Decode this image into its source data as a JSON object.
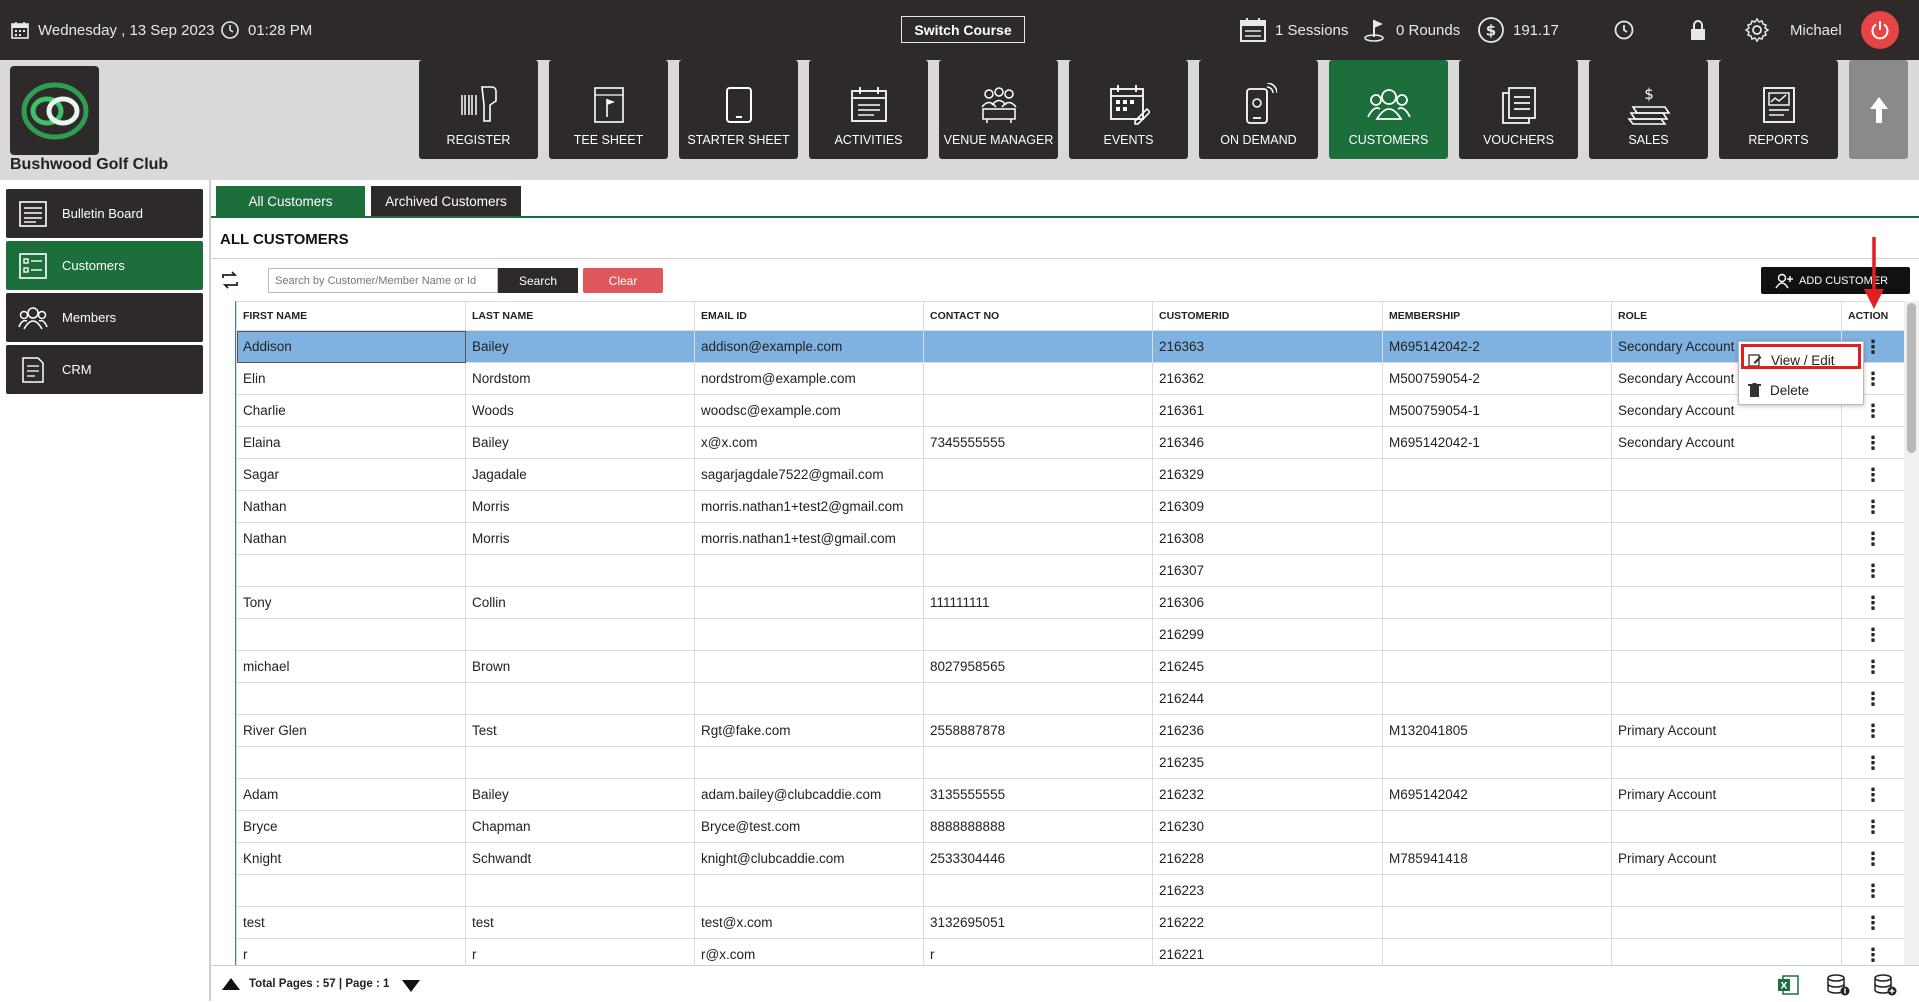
{
  "topbar": {
    "date": "Wednesday ,  13 Sep 2023",
    "time": "01:28 PM",
    "switch_course": "Switch Course",
    "sessions": "1 Sessions",
    "rounds": "0 Rounds",
    "balance": "191.17",
    "user": "Michael"
  },
  "header": {
    "club_name": "Bushwood Golf Club",
    "nav": [
      {
        "label": "REGISTER",
        "icon": "barcode-scanner-icon"
      },
      {
        "label": "TEE SHEET",
        "icon": "tee-sheet-icon"
      },
      {
        "label": "STARTER SHEET",
        "icon": "tablet-icon"
      },
      {
        "label": "ACTIVITIES",
        "icon": "calendar-icon"
      },
      {
        "label": "VENUE MANAGER",
        "icon": "venue-icon"
      },
      {
        "label": "EVENTS",
        "icon": "events-icon"
      },
      {
        "label": "ON DEMAND",
        "icon": "phone-icon"
      },
      {
        "label": "CUSTOMERS",
        "icon": "customers-icon"
      },
      {
        "label": "VOUCHERS",
        "icon": "vouchers-icon"
      },
      {
        "label": "SALES",
        "icon": "sales-icon"
      },
      {
        "label": "REPORTS",
        "icon": "reports-icon"
      }
    ],
    "active_nav": "CUSTOMERS"
  },
  "sidebar": {
    "items": [
      {
        "label": "Bulletin Board",
        "icon": "bulletin-board-icon"
      },
      {
        "label": "Customers",
        "icon": "customers-list-icon"
      },
      {
        "label": "Members",
        "icon": "members-icon"
      },
      {
        "label": "CRM",
        "icon": "crm-icon"
      }
    ],
    "active": "Customers"
  },
  "main": {
    "tabs": [
      {
        "label": "All Customers"
      },
      {
        "label": "Archived Customers"
      }
    ],
    "title": "ALL CUSTOMERS",
    "search": {
      "placeholder": "Search by Customer/Member Name or Id",
      "value": ""
    },
    "search_label": "Search",
    "clear_label": "Clear",
    "add_customer_label": "ADD CUSTOMER"
  },
  "table": {
    "columns": [
      "FIRST NAME",
      "LAST NAME",
      "EMAIL ID",
      "CONTACT NO",
      "CUSTOMERID",
      "MEMBERSHIP",
      "ROLE",
      "ACTION"
    ],
    "rows": [
      [
        "Addison",
        "Bailey",
        "addison@example.com",
        "",
        "216363",
        "M695142042-2",
        "Secondary Account"
      ],
      [
        "Elin",
        "Nordstom",
        "nordstrom@example.com",
        "",
        "216362",
        "M500759054-2",
        "Secondary Account"
      ],
      [
        "Charlie",
        "Woods",
        "woodsc@example.com",
        "",
        "216361",
        "M500759054-1",
        "Secondary Account"
      ],
      [
        "Elaina",
        "Bailey",
        "x@x.com",
        "7345555555",
        "216346",
        "M695142042-1",
        "Secondary Account"
      ],
      [
        "Sagar",
        "Jagadale",
        "sagarjagdale7522@gmail.com",
        "",
        "216329",
        "",
        ""
      ],
      [
        "Nathan",
        "Morris",
        "morris.nathan1+test2@gmail.com",
        "",
        "216309",
        "",
        ""
      ],
      [
        "Nathan",
        "Morris",
        "morris.nathan1+test@gmail.com",
        "",
        "216308",
        "",
        ""
      ],
      [
        "",
        "",
        "",
        "",
        "216307",
        "",
        ""
      ],
      [
        "Tony",
        "Collin",
        "",
        "111111111",
        "216306",
        "",
        ""
      ],
      [
        "",
        "",
        "",
        "",
        "216299",
        "",
        ""
      ],
      [
        "michael",
        "Brown",
        "",
        "8027958565",
        "216245",
        "",
        ""
      ],
      [
        "",
        "",
        "",
        "",
        "216244",
        "",
        ""
      ],
      [
        "River Glen",
        "Test",
        "Rgt@fake.com",
        "2558887878",
        "216236",
        "M132041805",
        "Primary Account"
      ],
      [
        "",
        "",
        "",
        "",
        "216235",
        "",
        ""
      ],
      [
        "Adam",
        "Bailey",
        "adam.bailey@clubcaddie.com",
        "3135555555",
        "216232",
        "M695142042",
        "Primary Account"
      ],
      [
        "Bryce",
        "Chapman",
        "Bryce@test.com",
        "8888888888",
        "216230",
        "",
        ""
      ],
      [
        "Knight",
        "Schwandt",
        "knight@clubcaddie.com",
        "2533304446",
        "216228",
        "M785941418",
        "Primary Account"
      ],
      [
        "",
        "",
        "",
        "",
        "216223",
        "",
        ""
      ],
      [
        "test",
        "test",
        "test@x.com",
        "3132695051",
        "216222",
        "",
        ""
      ],
      [
        "r",
        "r",
        "r@x.com",
        "r",
        "216221",
        "",
        ""
      ]
    ],
    "action_glyph": "⋮"
  },
  "context_menu": {
    "items": [
      {
        "label": "View / Edit",
        "icon": "edit-icon"
      },
      {
        "label": "Delete",
        "icon": "trash-icon"
      }
    ]
  },
  "footer": {
    "pages_text": "Total Pages : 57 | Page : 1"
  },
  "colors": {
    "dark": "#2d2a29",
    "green": "#1c6e3a",
    "selected_row": "#7fb2e0",
    "clear_red": "#e0575b",
    "power_red": "#e64545",
    "highlight_red": "#e02020"
  }
}
